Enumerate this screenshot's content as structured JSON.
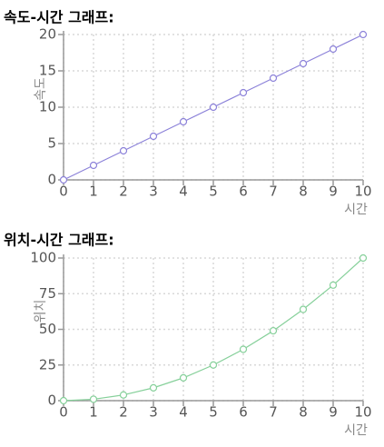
{
  "chart_data": [
    {
      "type": "line",
      "title": "속도-시간 그래프:",
      "y_label": "속도",
      "x_label": "시간",
      "x": [
        0,
        1,
        2,
        3,
        4,
        5,
        6,
        7,
        8,
        9,
        10
      ],
      "values": [
        0,
        2,
        4,
        6,
        8,
        10,
        12,
        14,
        16,
        18,
        20
      ],
      "color": "#8c82d9",
      "xlim": [
        0,
        10
      ],
      "xticks": [
        0,
        1,
        2,
        3,
        4,
        5,
        6,
        7,
        8,
        9,
        10
      ],
      "ylim": [
        0,
        20
      ],
      "yticks": [
        0,
        5,
        10,
        15,
        20
      ],
      "grid": true
    },
    {
      "type": "line",
      "title": "위치-시간 그래프:",
      "y_label": "위치",
      "x_label": "시간",
      "x": [
        0,
        1,
        2,
        3,
        4,
        5,
        6,
        7,
        8,
        9,
        10
      ],
      "values": [
        0,
        1,
        4,
        9,
        16,
        25,
        36,
        49,
        64,
        81,
        100
      ],
      "color": "#86d09a",
      "xlim": [
        0,
        10
      ],
      "xticks": [
        0,
        1,
        2,
        3,
        4,
        5,
        6,
        7,
        8,
        9,
        10
      ],
      "ylim": [
        0,
        100
      ],
      "yticks": [
        0,
        25,
        50,
        75,
        100
      ],
      "grid": true
    }
  ]
}
